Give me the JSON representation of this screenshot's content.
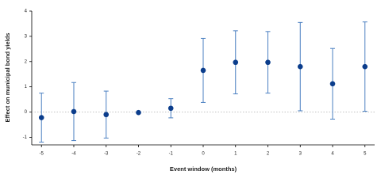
{
  "chart_data": {
    "type": "scatter",
    "xlabel": "Event window (months)",
    "ylabel": "Effect on municipal bond yields",
    "x": [
      -5,
      -4,
      -3,
      -2,
      -1,
      0,
      1,
      2,
      3,
      4,
      5
    ],
    "values": [
      -0.22,
      0.02,
      -0.1,
      -0.02,
      0.15,
      1.65,
      1.97,
      1.97,
      1.8,
      1.12,
      1.8
    ],
    "errors": [
      0.97,
      1.15,
      0.93,
      0,
      0.38,
      1.27,
      1.25,
      1.22,
      1.75,
      1.4,
      1.77
    ],
    "xlim": [
      -5.3,
      5.3
    ],
    "xticks": [
      -5,
      -4,
      -3,
      -2,
      -1,
      0,
      1,
      2,
      3,
      4,
      5
    ],
    "ylim": [
      -1.3,
      4
    ],
    "yticks": [
      -1,
      0,
      1,
      2,
      3,
      4
    ],
    "reference_line": 0,
    "color": "#0b3d8c",
    "error_color": "#4a7fc1",
    "grid": false
  }
}
